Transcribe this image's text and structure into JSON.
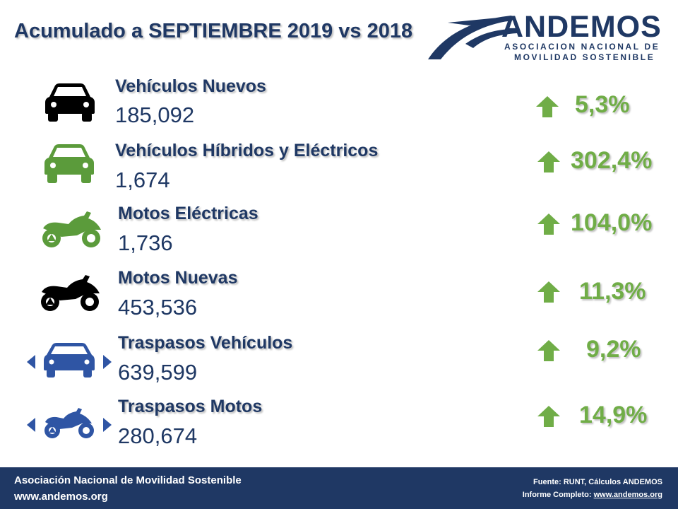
{
  "header": {
    "title": "Acumulado a SEPTIEMBRE 2019 vs 2018"
  },
  "logo": {
    "name": "ANDEMOS",
    "line1": "ASOCIACION NACIONAL DE",
    "line2": "MOVILIDAD SOSTENIBLE"
  },
  "colors": {
    "navy": "#1F3864",
    "green": "#70AD47",
    "icon_black": "#000000",
    "icon_green": "#5B9B3B",
    "icon_blue": "#2F55A4"
  },
  "rows": [
    {
      "icon": "car-icon",
      "label": "Vehículos Nuevos",
      "value": "185,092",
      "change": "5,3%"
    },
    {
      "icon": "green-car-icon",
      "label": "Vehículos Híbridos y Eléctricos",
      "value": "1,674",
      "change": "302,4%"
    },
    {
      "icon": "green-motorcycle-icon",
      "label": "Motos Eléctricas",
      "value": "1,736",
      "change": "104,0%"
    },
    {
      "icon": "motorcycle-icon",
      "label": "Motos Nuevas",
      "value": "453,536",
      "change": "11,3%"
    },
    {
      "icon": "car-transfer-icon",
      "label": "Traspasos Vehículos",
      "value": "639,599",
      "change": "9,2%"
    },
    {
      "icon": "motorcycle-transfer-icon",
      "label": "Traspasos Motos",
      "value": "280,674",
      "change": "14,9%"
    }
  ],
  "footer": {
    "org": "Asociación Nacional de Movilidad Sostenible",
    "site": "www.andemos.org",
    "source": "Fuente: RUNT, Cálculos ANDEMOS",
    "report_label": "Informe Completo:",
    "report_link": "www.andemos.org"
  }
}
